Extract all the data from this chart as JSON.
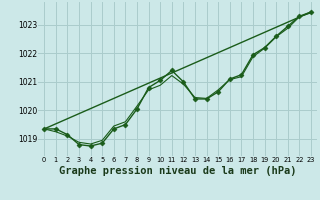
{
  "bg_color": "#cce8e8",
  "grid_color": "#aacccc",
  "line_color": "#1a5c1a",
  "xlabel": "Graphe pression niveau de la mer (hPa)",
  "xlabel_fontsize": 7.5,
  "ylim": [
    1018.4,
    1023.8
  ],
  "xlim": [
    -0.5,
    23.5
  ],
  "yticks": [
    1019,
    1020,
    1021,
    1022,
    1023
  ],
  "xticks": [
    0,
    1,
    2,
    3,
    4,
    5,
    6,
    7,
    8,
    9,
    10,
    11,
    12,
    13,
    14,
    15,
    16,
    17,
    18,
    19,
    20,
    21,
    22,
    23
  ],
  "series": [
    {
      "x": [
        0,
        1,
        2,
        3,
        4,
        5,
        6,
        7,
        8,
        9,
        10,
        11,
        12,
        13,
        14,
        15,
        16,
        17,
        18,
        19,
        20,
        21,
        22,
        23
      ],
      "y": [
        1019.35,
        1019.35,
        1019.15,
        1018.8,
        1018.75,
        1018.85,
        1019.35,
        1019.5,
        1020.05,
        1020.8,
        1021.05,
        1021.4,
        1021.0,
        1020.4,
        1020.4,
        1020.65,
        1021.1,
        1021.25,
        1021.95,
        1022.2,
        1022.6,
        1022.95,
        1023.3,
        1023.45
      ],
      "marker": true,
      "linewidth": 1.0,
      "markersize": 2.5
    },
    {
      "x": [
        0,
        1,
        2,
        3,
        4,
        5,
        6,
        7,
        8,
        9,
        10,
        11,
        12,
        13,
        14,
        15,
        16,
        17,
        18,
        19,
        20,
        21,
        22,
        23
      ],
      "y": [
        1019.35,
        1019.25,
        1019.1,
        1018.88,
        1018.82,
        1018.95,
        1019.45,
        1019.6,
        1020.15,
        1020.72,
        1020.88,
        1021.22,
        1020.92,
        1020.45,
        1020.42,
        1020.72,
        1021.08,
        1021.18,
        1021.88,
        1022.18,
        1022.58,
        1022.88,
        1023.28,
        1023.42
      ],
      "marker": false,
      "linewidth": 0.8
    },
    {
      "x": [
        0,
        23
      ],
      "y": [
        1019.35,
        1023.45
      ],
      "marker": false,
      "linewidth": 1.0
    }
  ]
}
